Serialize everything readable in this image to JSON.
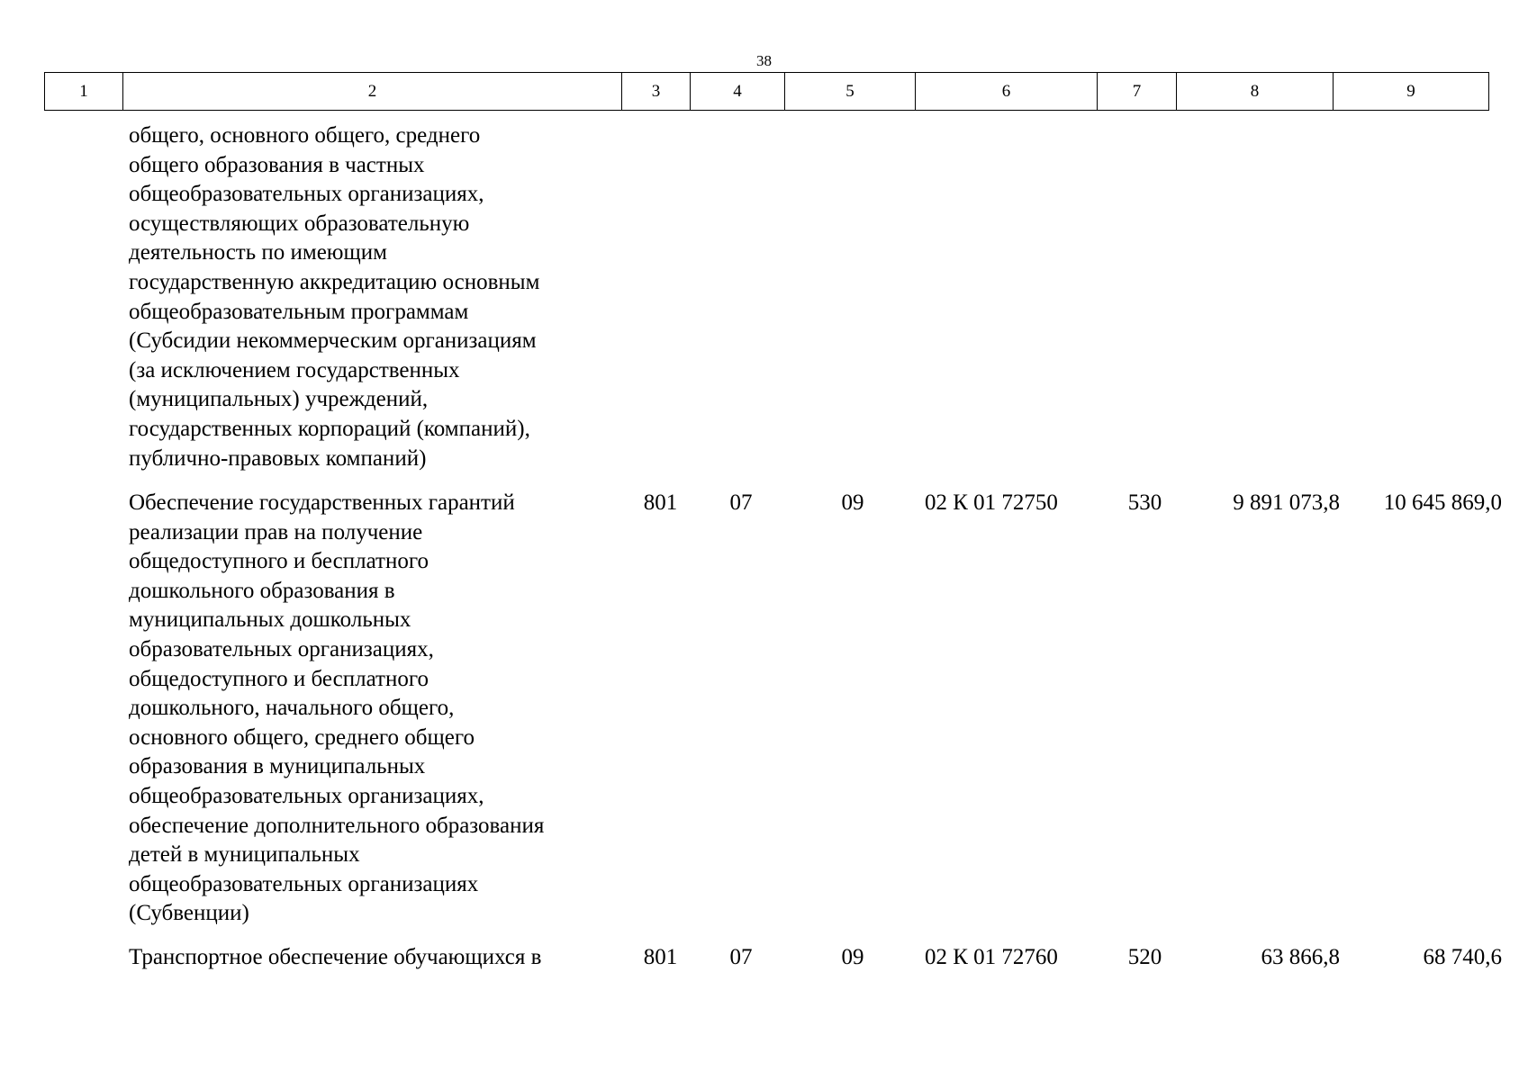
{
  "page_number": "38",
  "header": [
    "1",
    "2",
    "3",
    "4",
    "5",
    "6",
    "7",
    "8",
    "9"
  ],
  "rows": [
    {
      "name_lines": [
        "общего, основного общего, среднего",
        "общего образования в частных",
        "общеобразовательных организациях,",
        "осуществляющих образовательную",
        "деятельность по имеющим",
        "государственную аккредитацию основным",
        "общеобразовательным программам",
        "(Субсидии некоммерческим организациям",
        "(за исключением государственных",
        "(муниципальных) учреждений,",
        "государственных корпораций (компаний),",
        "публично-правовых компаний)"
      ],
      "col3": "",
      "col4": "",
      "col5": "",
      "col6": "",
      "col7": "",
      "col8": "",
      "col9": ""
    },
    {
      "name_lines": [
        "Обеспечение государственных гарантий",
        "реализации прав на получение",
        "общедоступного и бесплатного",
        "дошкольного образования в",
        "муниципальных дошкольных",
        "образовательных организациях,",
        "общедоступного и бесплатного",
        "дошкольного, начального общего,",
        "основного общего, среднего общего",
        "образования в муниципальных",
        "общеобразовательных организациях,",
        "обеспечение дополнительного образования",
        "детей в муниципальных",
        "общеобразовательных организациях",
        "(Субвенции)"
      ],
      "col3": "801",
      "col4": "07",
      "col5": "09",
      "col6": "02 К 01 72750",
      "col7": "530",
      "col8": "9 891 073,8",
      "col9": "10 645 869,0"
    },
    {
      "name_lines": [
        "Транспортное обеспечение обучающихся в"
      ],
      "col3": "801",
      "col4": "07",
      "col5": "09",
      "col6": "02 К 01 72760",
      "col7": "520",
      "col8": "63 866,8",
      "col9": "68 740,6"
    }
  ]
}
